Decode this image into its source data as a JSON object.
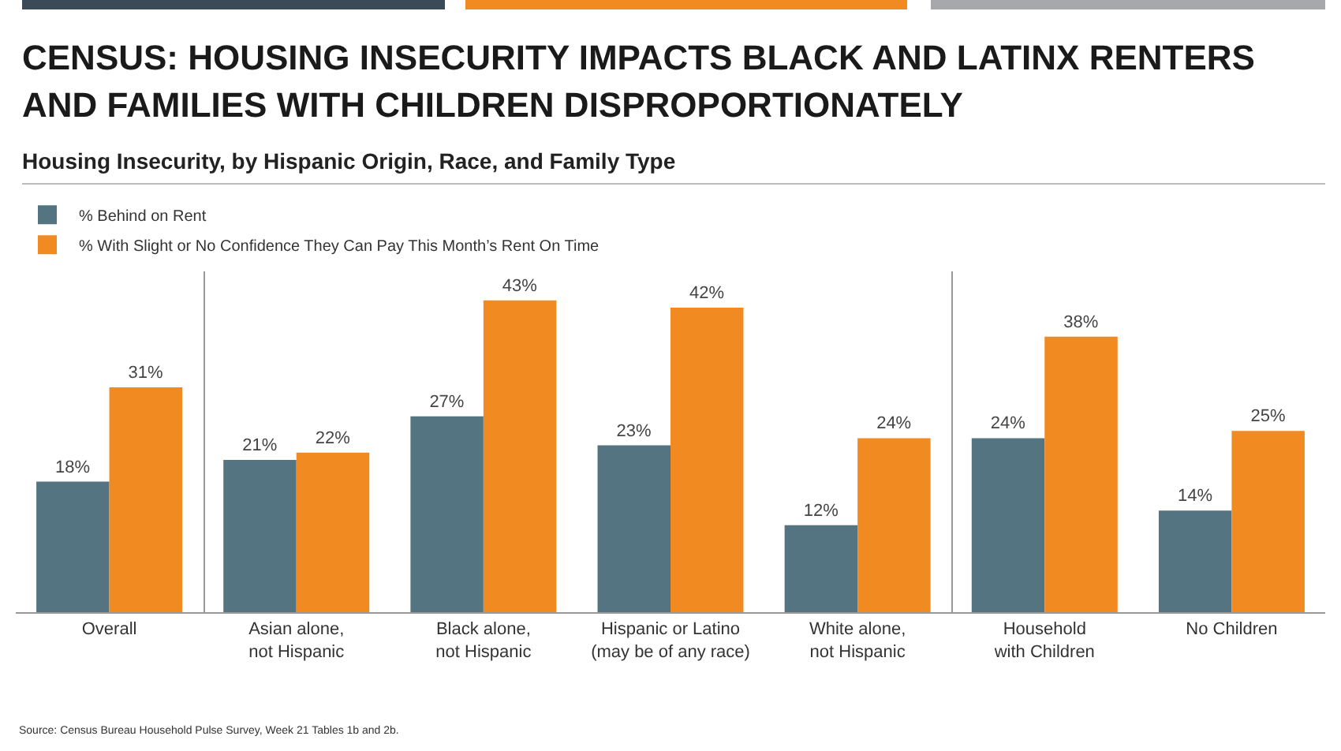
{
  "chart_data": {
    "type": "bar",
    "title": "CENSUS: HOUSING INSECURITY IMPACTS BLACK AND LATINX RENTERS AND FAMILIES WITH CHILDREN DISPROPORTIONATELY",
    "subtitle": "Housing Insecurity, by Hispanic Origin, Race, and Family Type",
    "categories": [
      "Overall",
      "Asian alone, not Hispanic",
      "Black alone, not Hispanic",
      "Hispanic or Latino (may be of any race)",
      "White alone, not Hispanic",
      "Household with Children",
      "No Children"
    ],
    "series": [
      {
        "name": "% Behind on Rent",
        "color": "#557482",
        "values": [
          18,
          21,
          27,
          23,
          12,
          24,
          14
        ],
        "value_labels": [
          "18%",
          "21%",
          "27%",
          "23%",
          "12%",
          "24%",
          "14%"
        ]
      },
      {
        "name": "% With Slight or No Confidence They Can Pay This Month’s Rent On Time",
        "color": "#f18a21",
        "values": [
          31,
          22,
          43,
          42,
          24,
          38,
          25
        ],
        "value_labels": [
          "31%",
          "22%",
          "43%",
          "42%",
          "24%",
          "38%",
          "25%"
        ]
      }
    ],
    "annotations": [
      "Source: Census Bureau Household Pulse Survey, Week 21 Tables 1b and 2b."
    ],
    "legend": "top left",
    "grid": false
  }
}
